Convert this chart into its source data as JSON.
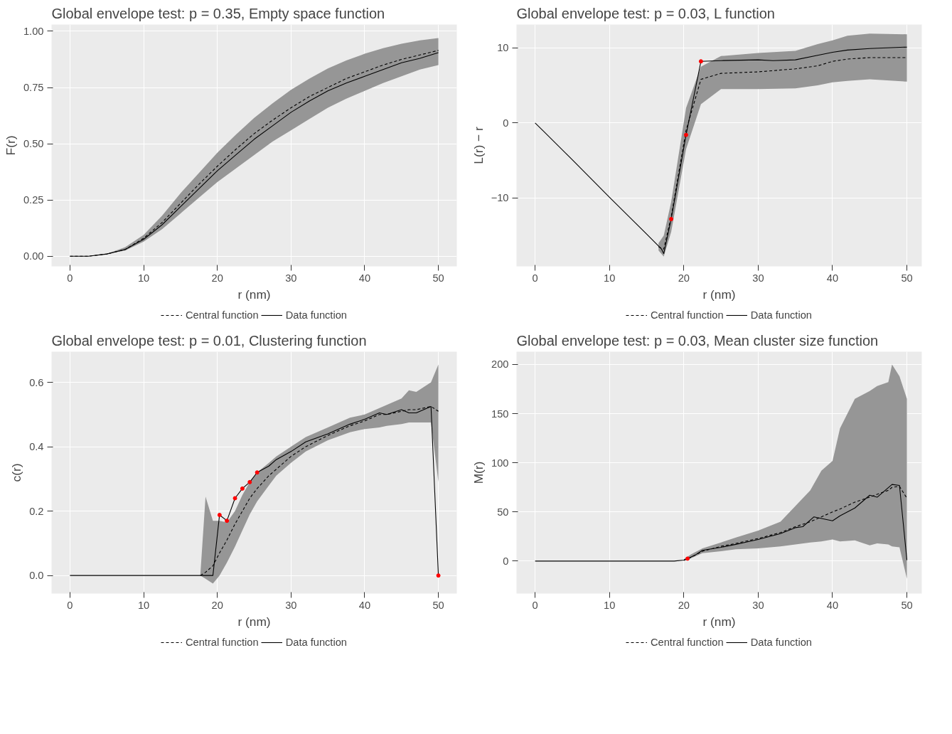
{
  "chart_data": [
    {
      "type": "line",
      "title": "Global envelope test: p = 0.35, Empty space function",
      "xlabel": "r (nm)",
      "ylabel": "F(r)",
      "xlim": [
        -2.5,
        52.5
      ],
      "ylim": [
        -0.045,
        1.03
      ],
      "xticks": [
        0,
        10,
        20,
        30,
        40,
        50
      ],
      "yticks": [
        {
          "value": 0,
          "label": "0.00"
        },
        {
          "value": 0.25,
          "label": "0.25"
        },
        {
          "value": 0.5,
          "label": "0.50"
        },
        {
          "value": 0.75,
          "label": "0.75"
        },
        {
          "value": 1,
          "label": "1.00"
        }
      ],
      "grid": true,
      "legend": "bottom",
      "x": [
        0,
        2.5,
        5,
        7.5,
        10,
        12.5,
        15,
        17.5,
        20,
        22.5,
        25,
        27.5,
        30,
        32.5,
        35,
        37.5,
        40,
        42.5,
        45,
        47.5,
        50
      ],
      "series": [
        {
          "name": "Central function",
          "color": "#000000",
          "line_style": "dashed",
          "values": [
            0,
            0,
            0.01,
            0.03,
            0.08,
            0.15,
            0.235,
            0.32,
            0.4,
            0.475,
            0.545,
            0.605,
            0.66,
            0.71,
            0.75,
            0.79,
            0.82,
            0.85,
            0.875,
            0.895,
            0.915
          ],
          "lower": [
            0,
            0,
            0.01,
            0.025,
            0.065,
            0.12,
            0.19,
            0.26,
            0.33,
            0.39,
            0.45,
            0.51,
            0.56,
            0.61,
            0.66,
            0.7,
            0.735,
            0.77,
            0.8,
            0.83,
            0.85
          ],
          "upper": [
            0,
            0,
            0.01,
            0.04,
            0.095,
            0.18,
            0.28,
            0.37,
            0.46,
            0.54,
            0.615,
            0.68,
            0.74,
            0.79,
            0.835,
            0.87,
            0.9,
            0.925,
            0.945,
            0.96,
            0.97
          ]
        },
        {
          "name": "Data function",
          "color": "#000000",
          "line_style": "solid",
          "values": [
            0,
            0,
            0.01,
            0.03,
            0.075,
            0.14,
            0.22,
            0.3,
            0.38,
            0.45,
            0.52,
            0.58,
            0.64,
            0.69,
            0.735,
            0.77,
            0.8,
            0.83,
            0.86,
            0.88,
            0.905
          ]
        }
      ]
    },
    {
      "type": "line",
      "title": "Global envelope test: p = 0.03, L function",
      "xlabel": "r (nm)",
      "ylabel": "L(r) − r",
      "xlim": [
        -2.5,
        52
      ],
      "ylim": [
        -19.1,
        13.1
      ],
      "xticks": [
        0,
        10,
        20,
        30,
        40,
        50
      ],
      "yticks": [
        -10,
        0,
        10
      ],
      "grid": true,
      "legend": "bottom",
      "series": [
        {
          "name": "Central function",
          "color": "#000000",
          "line_style": "dashed",
          "x": [
            16.6,
            17.3,
            18.3,
            20.3,
            22.3,
            25,
            30,
            35,
            38,
            40,
            42,
            45,
            50
          ],
          "values": [
            -16.5,
            -16.8,
            -12.5,
            -1,
            5.8,
            6.6,
            6.8,
            7.2,
            7.6,
            8.2,
            8.5,
            8.7,
            8.7
          ],
          "lower": [
            -17.0,
            -17.8,
            -14.5,
            -3.5,
            2.5,
            4.5,
            4.5,
            4.6,
            5.0,
            5.4,
            5.6,
            5.8,
            5.5
          ],
          "upper": [
            -16.0,
            -15.0,
            -10.5,
            2.0,
            7.5,
            8.9,
            9.3,
            9.6,
            10.5,
            11.0,
            11.6,
            11.9,
            11.8
          ]
        },
        {
          "name": "Data function",
          "color": "#000000",
          "line_style": "solid",
          "x": [
            0,
            5,
            10,
            15,
            17,
            17.3,
            18.3,
            20.3,
            22.3,
            25,
            30,
            32,
            35,
            38,
            40,
            42,
            45,
            50
          ],
          "values": [
            0,
            -4.9,
            -9.9,
            -14.8,
            -16.8,
            -17.4,
            -12.8,
            -1.6,
            8.2,
            8.3,
            8.4,
            8.3,
            8.4,
            9.0,
            9.4,
            9.7,
            9.9,
            10.1
          ]
        },
        {
          "type": "scatter",
          "color": "#ff0000",
          "marker": "circle",
          "x": [
            18.3,
            20.3,
            22.3
          ],
          "values": [
            -12.8,
            -1.6,
            8.2
          ]
        }
      ]
    },
    {
      "type": "line",
      "title": "Global envelope test: p = 0.01, Clustering function",
      "xlabel": "r (nm)",
      "ylabel": "c(r)",
      "xlim": [
        -2.5,
        52.5
      ],
      "ylim": [
        -0.056,
        0.695
      ],
      "xticks": [
        0,
        10,
        20,
        30,
        40,
        50
      ],
      "yticks": [
        {
          "value": 0,
          "label": "0.0"
        },
        {
          "value": 0.2,
          "label": "0.2"
        },
        {
          "value": 0.4,
          "label": "0.4"
        },
        {
          "value": 0.6,
          "label": "0.6"
        }
      ],
      "grid": true,
      "legend": "bottom",
      "series": [
        {
          "name": "Central function",
          "color": "#000000",
          "line_style": "dashed",
          "x": [
            17.7,
            18.4,
            19.4,
            20.3,
            21.3,
            22.4,
            23.4,
            24.4,
            25.4,
            27,
            28,
            30,
            32,
            35,
            38,
            40,
            42,
            43,
            45,
            46,
            47,
            49,
            50
          ],
          "values": [
            0,
            0.01,
            0.03,
            0.07,
            0.11,
            0.16,
            0.2,
            0.24,
            0.27,
            0.31,
            0.33,
            0.37,
            0.4,
            0.435,
            0.465,
            0.48,
            0.5,
            0.5,
            0.51,
            0.515,
            0.515,
            0.525,
            0.51
          ],
          "lower": [
            0,
            -0.01,
            -0.025,
            0,
            0.04,
            0.09,
            0.14,
            0.19,
            0.23,
            0.28,
            0.31,
            0.35,
            0.385,
            0.42,
            0.445,
            0.455,
            0.46,
            0.465,
            0.47,
            0.475,
            0.475,
            0.475,
            0.29
          ],
          "upper": [
            0.005,
            0.245,
            0.17,
            0.17,
            0.165,
            0.2,
            0.25,
            0.29,
            0.32,
            0.35,
            0.37,
            0.4,
            0.43,
            0.46,
            0.49,
            0.5,
            0.52,
            0.53,
            0.55,
            0.575,
            0.57,
            0.6,
            0.655
          ]
        },
        {
          "name": "Data function",
          "color": "#000000",
          "line_style": "solid",
          "x": [
            0,
            19.4,
            20.3,
            21.3,
            22.4,
            23.4,
            24.4,
            25.4,
            27,
            28,
            30,
            32,
            35,
            38,
            40,
            42,
            43,
            45,
            46,
            47,
            49,
            50
          ],
          "values": [
            0,
            0,
            0.188,
            0.17,
            0.24,
            0.27,
            0.29,
            0.32,
            0.34,
            0.36,
            0.385,
            0.415,
            0.44,
            0.47,
            0.485,
            0.505,
            0.5,
            0.515,
            0.505,
            0.505,
            0.525,
            0.0
          ]
        },
        {
          "type": "scatter",
          "color": "#ff0000",
          "marker": "circle",
          "x": [
            20.3,
            21.3,
            22.4,
            23.4,
            24.4,
            25.4,
            50
          ],
          "values": [
            0.188,
            0.17,
            0.24,
            0.27,
            0.29,
            0.32,
            0
          ]
        }
      ]
    },
    {
      "type": "line",
      "title": "Global envelope test: p = 0.03, Mean cluster size function",
      "xlabel": "r (nm)",
      "ylabel": "M(r)",
      "xlim": [
        -2.5,
        52
      ],
      "ylim": [
        -33,
        213
      ],
      "xticks": [
        0,
        10,
        20,
        30,
        40,
        50
      ],
      "yticks": [
        0,
        50,
        100,
        150,
        200
      ],
      "grid": true,
      "legend": "bottom",
      "series": [
        {
          "name": "Central function",
          "color": "#000000",
          "line_style": "dashed",
          "x": [
            20,
            21,
            22.5,
            25,
            27,
            30,
            33,
            35,
            37,
            38.5,
            40,
            41,
            43,
            45,
            46,
            47.5,
            48,
            49,
            50
          ],
          "values": [
            1,
            4,
            10,
            15,
            18,
            23,
            29,
            35,
            40,
            45,
            50,
            53,
            60,
            65,
            68,
            72,
            75,
            76,
            64
          ],
          "lower": [
            0,
            3,
            8,
            10,
            12,
            13,
            15,
            17,
            19,
            20,
            22,
            20,
            21,
            16,
            18,
            17,
            15,
            14,
            -18
          ],
          "upper": [
            2,
            7,
            13,
            19,
            24,
            31,
            40,
            56,
            72,
            92,
            102,
            135,
            165,
            173,
            178,
            182,
            200,
            188,
            165
          ]
        },
        {
          "name": "Data function",
          "color": "#000000",
          "line_style": "solid",
          "x": [
            0,
            18.7,
            20,
            20.5,
            21.5,
            22.5,
            25,
            27,
            30,
            33,
            35,
            36,
            37.5,
            40,
            41,
            43,
            45,
            46,
            48,
            49,
            50
          ],
          "values": [
            0,
            0,
            1,
            2.5,
            6,
            11,
            14,
            17,
            22,
            28,
            34,
            35,
            45,
            41,
            46,
            54,
            67,
            65,
            78,
            77,
            1
          ]
        },
        {
          "type": "scatter",
          "color": "#ff0000",
          "marker": "circle",
          "x": [
            20.5
          ],
          "values": [
            2.5
          ]
        }
      ]
    }
  ]
}
